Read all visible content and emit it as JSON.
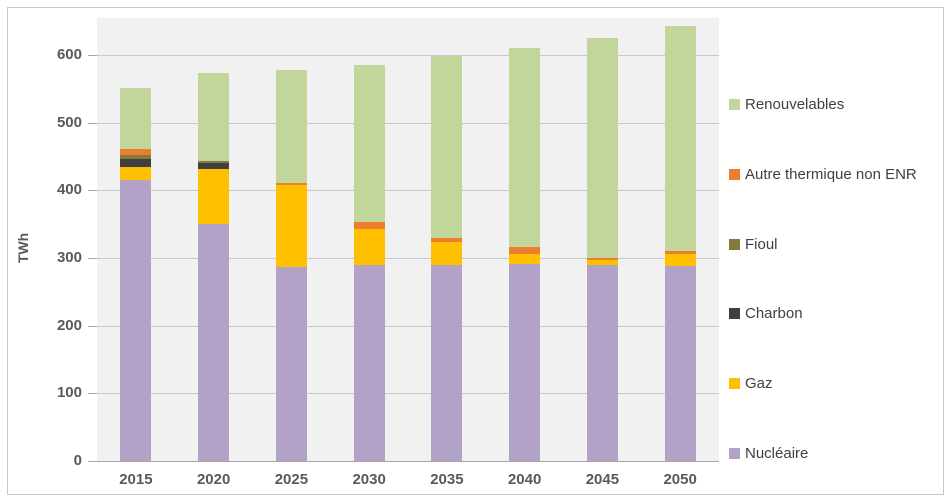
{
  "figure": {
    "ylabel": "TWh"
  },
  "chart_data": {
    "type": "bar",
    "stacked": true,
    "title": "",
    "xlabel": "",
    "ylabel": "TWh",
    "ylim": [
      0,
      656
    ],
    "yticks": [
      0,
      100,
      200,
      300,
      400,
      500,
      600
    ],
    "grid": true,
    "legend_position": "right",
    "categories": [
      "2015",
      "2020",
      "2025",
      "2030",
      "2035",
      "2040",
      "2045",
      "2050"
    ],
    "series": [
      {
        "name": "Nucléaire",
        "color": "#B2A2C7",
        "values": [
          416,
          350,
          287,
          289,
          289,
          291,
          290,
          288
        ]
      },
      {
        "name": "Gaz",
        "color": "#FFC000",
        "values": [
          19,
          82,
          121,
          54,
          34,
          15,
          7,
          18
        ]
      },
      {
        "name": "Charbon",
        "color": "#404040",
        "values": [
          12,
          8,
          0,
          0,
          0,
          0,
          0,
          0
        ]
      },
      {
        "name": "Fioul",
        "color": "#837A3B",
        "values": [
          6,
          4,
          0,
          0,
          0,
          0,
          0,
          0
        ]
      },
      {
        "name": "Autre thermique non ENR",
        "color": "#ED7D31",
        "values": [
          8,
          0,
          3,
          10,
          7,
          10,
          3,
          4
        ]
      },
      {
        "name": "Renouvelables",
        "color": "#C2D69B",
        "values": [
          90,
          130,
          167,
          232,
          268,
          294,
          325,
          333
        ]
      }
    ],
    "totals": [
      551,
      574,
      578,
      585,
      598,
      610,
      625,
      643
    ],
    "legend_order": [
      "Renouvelables",
      "Autre thermique non ENR",
      "Fioul",
      "Charbon",
      "Gaz",
      "Nucléaire"
    ]
  },
  "style": {
    "plot_background": "#F1F1F1",
    "page_background": "#FFFFFF",
    "frame_border": "#C9C9C9",
    "grid_color": "#C9C9C9",
    "axis_color": "#A6A6A6",
    "tick_label_color": "#595959",
    "legend_text_color": "#404040"
  }
}
